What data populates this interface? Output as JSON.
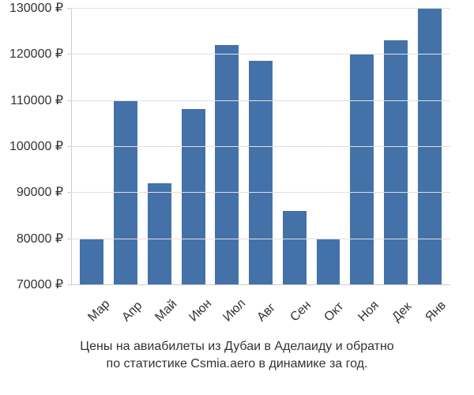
{
  "chart": {
    "type": "bar",
    "categories": [
      "Мар",
      "Апр",
      "Май",
      "Июн",
      "Июл",
      "Авг",
      "Сен",
      "Окт",
      "Ноя",
      "Дек",
      "Янв"
    ],
    "values": [
      80000,
      110000,
      92000,
      108000,
      122000,
      118500,
      86000,
      80000,
      120000,
      123000,
      130000
    ],
    "bar_color": "#4472a8",
    "background_color": "#ffffff",
    "grid_color": "#e0e0e0",
    "axis_color": "#cccccc",
    "text_color": "#333333",
    "ylim": [
      70000,
      130000
    ],
    "yticks": [
      70000,
      80000,
      90000,
      100000,
      110000,
      120000,
      130000
    ],
    "ytick_labels": [
      "70000 ₽",
      "80000 ₽",
      "90000 ₽",
      "100000 ₽",
      "110000 ₽",
      "120000 ₽",
      "130000 ₽"
    ],
    "label_fontsize": 16,
    "caption_fontsize": 16,
    "bar_width": 0.7,
    "x_label_rotation": -45,
    "caption_line1": "Цены на авиабилеты из Дубаи в Аделаиду и обратно",
    "caption_line2": "по статистике Csmia.aero в динамике за год."
  }
}
